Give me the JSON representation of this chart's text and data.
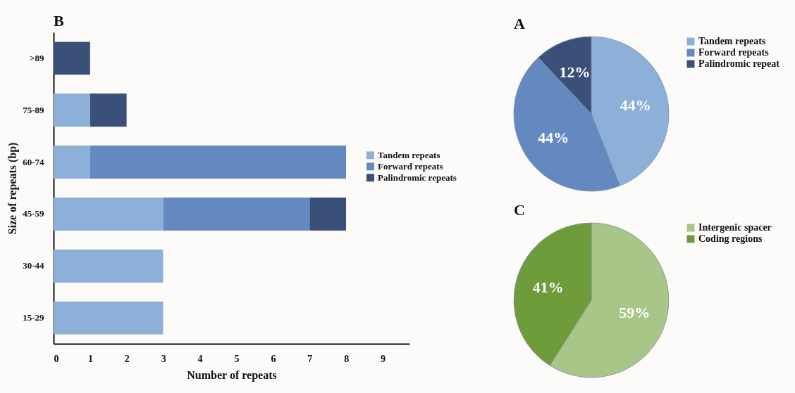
{
  "chart_data": [
    {
      "type": "bar",
      "title": "B",
      "orientation": "horizontal",
      "stacked": true,
      "categories": [
        ">89",
        "75-89",
        "60-74",
        "45-59",
        "30-44",
        "15-29"
      ],
      "series": [
        {
          "name": "Tandem repeats",
          "color": "#8db0d8",
          "values": [
            0,
            1,
            1,
            3,
            3,
            3
          ]
        },
        {
          "name": "Forward repeats",
          "color": "#6389c0",
          "values": [
            0,
            0,
            7,
            4,
            0,
            0
          ]
        },
        {
          "name": "Palindromic repeats",
          "color": "#3b5078",
          "values": [
            1,
            1,
            0,
            1,
            0,
            0
          ]
        }
      ],
      "xlim": [
        0,
        9.73
      ],
      "xticks": [
        0,
        1,
        2,
        3,
        4,
        5,
        6,
        7,
        8,
        9
      ],
      "xlabel": "Number of repeats",
      "ylabel": "Size of repeats (bp)",
      "legend": "right"
    },
    {
      "type": "pie",
      "title": "A",
      "categories": [
        "Tandem repeats",
        "Forward repeats",
        "Palindromic repeat"
      ],
      "values": [
        44,
        44,
        12
      ],
      "colors": [
        "#8db0d8",
        "#6389c0",
        "#3b5078"
      ],
      "value_labels": [
        "44%",
        "44%",
        "12%"
      ],
      "legend": "right"
    },
    {
      "type": "pie",
      "title": "C",
      "categories": [
        "Intergenic spacer",
        "Coding regions"
      ],
      "values": [
        59,
        41
      ],
      "colors": [
        "#a8c688",
        "#6e9c3a"
      ],
      "value_labels": [
        "59%",
        "41%"
      ],
      "legend": "right"
    }
  ]
}
